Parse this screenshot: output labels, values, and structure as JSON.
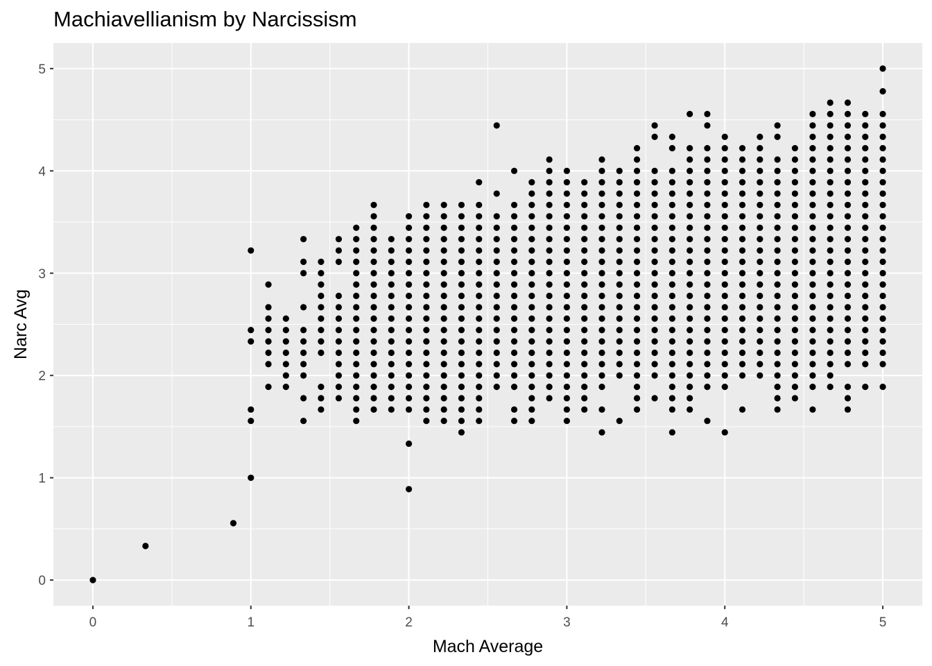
{
  "chart_data": {
    "type": "scatter",
    "title": "Machiavellianism by Narcissism",
    "xlabel": "Mach Average",
    "ylabel": "Narc Avg",
    "xlim": [
      -0.25,
      5.25
    ],
    "ylim": [
      -0.25,
      5.25
    ],
    "x_ticks": [
      0,
      1,
      2,
      3,
      4,
      5
    ],
    "y_ticks": [
      0,
      1,
      2,
      3,
      4,
      5
    ],
    "x_tick_labels": [
      "0",
      "1",
      "2",
      "3",
      "4",
      "5"
    ],
    "y_tick_labels": [
      "0",
      "1",
      "2",
      "3",
      "4",
      "5"
    ],
    "grid": true,
    "panel_background": "#ebebeb",
    "grid_color": "#ffffff",
    "point_color": "#000000",
    "value_step": 0.1111,
    "columns": [
      {
        "x": 0,
        "y": [
          0
        ]
      },
      {
        "x": 0.333,
        "y": [
          0.333
        ]
      },
      {
        "x": 0.889,
        "y": [
          0.556
        ]
      },
      {
        "x": 1.0,
        "y": [
          1.0,
          1.556,
          1.667,
          2.333,
          2.444,
          3.222
        ]
      },
      {
        "x": 1.111,
        "y": [
          1.889,
          2.111,
          2.222,
          2.333,
          2.444,
          2.556,
          2.667,
          2.889
        ]
      },
      {
        "x": 1.222,
        "y": [
          1.889,
          2.0,
          2.111,
          2.222,
          2.333,
          2.444,
          2.556
        ]
      },
      {
        "x": 1.333,
        "y": [
          1.556,
          1.778,
          2.0,
          2.111,
          2.222,
          2.333,
          2.444,
          2.667,
          3.0,
          3.111,
          3.333
        ]
      },
      {
        "x": 1.444,
        "y": [
          1.667,
          1.778,
          1.889,
          2.222,
          2.333,
          2.444,
          2.556,
          2.667,
          2.778,
          2.889,
          3.0,
          3.111
        ]
      },
      {
        "x": 1.556,
        "y": [
          1.778,
          1.889,
          2.0,
          2.111,
          2.222,
          2.333,
          2.444,
          2.556,
          2.667,
          2.778,
          3.111,
          3.222,
          3.333
        ]
      },
      {
        "x": 1.667,
        "y": [
          1.556,
          1.667,
          1.778,
          1.889,
          2.0,
          2.111,
          2.222,
          2.333,
          2.444,
          2.556,
          2.667,
          2.778,
          2.889,
          3.0,
          3.111,
          3.222,
          3.333,
          3.444
        ]
      },
      {
        "x": 1.778,
        "y": [
          1.667,
          1.778,
          1.889,
          2.0,
          2.111,
          2.222,
          2.333,
          2.444,
          2.556,
          2.667,
          2.778,
          2.889,
          3.0,
          3.111,
          3.222,
          3.333,
          3.444,
          3.556,
          3.667
        ]
      },
      {
        "x": 1.889,
        "y": [
          1.667,
          1.778,
          1.889,
          2.0,
          2.111,
          2.222,
          2.333,
          2.444,
          2.556,
          2.667,
          2.778,
          2.889,
          3.0,
          3.111,
          3.222,
          3.333
        ]
      },
      {
        "x": 2.0,
        "y": [
          0.889,
          1.333,
          1.667,
          1.778,
          1.889,
          2.0,
          2.111,
          2.222,
          2.333,
          2.444,
          2.556,
          2.667,
          2.778,
          2.889,
          3.0,
          3.111,
          3.222,
          3.333,
          3.444,
          3.556
        ]
      },
      {
        "x": 2.111,
        "y": [
          1.556,
          1.667,
          1.778,
          1.889,
          2.0,
          2.111,
          2.222,
          2.333,
          2.444,
          2.556,
          2.667,
          2.778,
          2.889,
          3.0,
          3.111,
          3.222,
          3.333,
          3.444,
          3.556,
          3.667
        ]
      },
      {
        "x": 2.222,
        "y": [
          1.556,
          1.667,
          1.778,
          1.889,
          2.0,
          2.111,
          2.222,
          2.333,
          2.444,
          2.556,
          2.667,
          2.778,
          2.889,
          3.0,
          3.111,
          3.222,
          3.333,
          3.444,
          3.556,
          3.667
        ]
      },
      {
        "x": 2.333,
        "y": [
          1.444,
          1.556,
          1.667,
          1.778,
          1.889,
          2.0,
          2.111,
          2.222,
          2.333,
          2.444,
          2.556,
          2.667,
          2.778,
          2.889,
          3.0,
          3.111,
          3.222,
          3.333,
          3.444,
          3.556,
          3.667
        ]
      },
      {
        "x": 2.444,
        "y": [
          1.556,
          1.667,
          1.778,
          1.889,
          2.0,
          2.111,
          2.222,
          2.333,
          2.444,
          2.556,
          2.667,
          2.778,
          2.889,
          3.0,
          3.111,
          3.222,
          3.333,
          3.444,
          3.556,
          3.667,
          3.889
        ]
      },
      {
        "x": 2.556,
        "y": [
          1.889,
          2.0,
          2.111,
          2.222,
          2.333,
          2.444,
          2.556,
          2.667,
          2.778,
          2.889,
          3.0,
          3.111,
          3.222,
          3.333,
          3.444,
          3.556,
          3.778,
          4.444
        ]
      },
      {
        "x": 2.667,
        "y": [
          1.556,
          1.667,
          1.889,
          2.0,
          2.111,
          2.222,
          2.333,
          2.444,
          2.556,
          2.667,
          2.778,
          2.889,
          3.0,
          3.111,
          3.222,
          3.333,
          3.444,
          3.556,
          3.667,
          4.0
        ]
      },
      {
        "x": 2.778,
        "y": [
          1.556,
          1.667,
          1.778,
          1.889,
          2.0,
          2.111,
          2.222,
          2.333,
          2.444,
          2.556,
          2.667,
          2.778,
          2.889,
          3.0,
          3.111,
          3.222,
          3.333,
          3.444,
          3.556,
          3.667,
          3.778,
          3.889
        ]
      },
      {
        "x": 2.889,
        "y": [
          1.778,
          1.889,
          2.0,
          2.111,
          2.222,
          2.333,
          2.444,
          2.556,
          2.667,
          2.778,
          2.889,
          3.0,
          3.111,
          3.222,
          3.333,
          3.444,
          3.556,
          3.667,
          3.778,
          3.889,
          4.0,
          4.111
        ]
      },
      {
        "x": 3.0,
        "y": [
          1.556,
          1.667,
          1.778,
          1.889,
          2.0,
          2.111,
          2.222,
          2.333,
          2.444,
          2.556,
          2.667,
          2.778,
          2.889,
          3.0,
          3.111,
          3.222,
          3.333,
          3.444,
          3.556,
          3.667,
          3.778,
          3.889,
          4.0
        ]
      },
      {
        "x": 3.111,
        "y": [
          1.667,
          1.778,
          1.889,
          2.0,
          2.111,
          2.222,
          2.333,
          2.444,
          2.556,
          2.667,
          2.778,
          2.889,
          3.0,
          3.111,
          3.222,
          3.333,
          3.444,
          3.556,
          3.667,
          3.778,
          3.889
        ]
      },
      {
        "x": 3.222,
        "y": [
          1.444,
          1.667,
          1.889,
          2.0,
          2.111,
          2.222,
          2.333,
          2.444,
          2.556,
          2.667,
          2.778,
          2.889,
          3.0,
          3.111,
          3.222,
          3.333,
          3.444,
          3.556,
          3.667,
          3.778,
          3.889,
          4.0,
          4.111
        ]
      },
      {
        "x": 3.333,
        "y": [
          1.556,
          2.0,
          2.111,
          2.222,
          2.333,
          2.444,
          2.556,
          2.667,
          2.778,
          2.889,
          3.0,
          3.111,
          3.222,
          3.333,
          3.444,
          3.556,
          3.667,
          3.778,
          3.889,
          4.0
        ]
      },
      {
        "x": 3.444,
        "y": [
          1.667,
          1.778,
          1.889,
          2.0,
          2.111,
          2.222,
          2.333,
          2.444,
          2.556,
          2.667,
          2.778,
          2.889,
          3.0,
          3.111,
          3.222,
          3.333,
          3.444,
          3.556,
          3.667,
          3.778,
          3.889,
          4.0,
          4.111,
          4.222
        ]
      },
      {
        "x": 3.556,
        "y": [
          1.778,
          2.0,
          2.111,
          2.222,
          2.333,
          2.444,
          2.556,
          2.667,
          2.778,
          2.889,
          3.0,
          3.111,
          3.222,
          3.333,
          3.444,
          3.556,
          3.667,
          3.778,
          3.889,
          4.0,
          4.333,
          4.444
        ]
      },
      {
        "x": 3.667,
        "y": [
          1.444,
          1.667,
          1.778,
          1.889,
          2.0,
          2.111,
          2.222,
          2.333,
          2.444,
          2.556,
          2.667,
          2.778,
          2.889,
          3.0,
          3.111,
          3.222,
          3.333,
          3.444,
          3.556,
          3.667,
          3.778,
          3.889,
          4.0,
          4.222,
          4.333
        ]
      },
      {
        "x": 3.778,
        "y": [
          1.667,
          1.778,
          1.889,
          2.0,
          2.111,
          2.222,
          2.333,
          2.444,
          2.556,
          2.667,
          2.778,
          2.889,
          3.0,
          3.111,
          3.222,
          3.333,
          3.444,
          3.556,
          3.667,
          3.778,
          3.889,
          4.0,
          4.111,
          4.222,
          4.556
        ]
      },
      {
        "x": 3.889,
        "y": [
          1.556,
          1.889,
          2.0,
          2.111,
          2.222,
          2.333,
          2.444,
          2.556,
          2.667,
          2.778,
          2.889,
          3.0,
          3.111,
          3.222,
          3.333,
          3.444,
          3.556,
          3.667,
          3.778,
          3.889,
          4.0,
          4.111,
          4.222,
          4.444,
          4.556
        ]
      },
      {
        "x": 4.0,
        "y": [
          1.444,
          1.889,
          2.0,
          2.111,
          2.222,
          2.333,
          2.444,
          2.556,
          2.667,
          2.778,
          2.889,
          3.0,
          3.111,
          3.222,
          3.333,
          3.444,
          3.556,
          3.667,
          3.778,
          3.889,
          4.0,
          4.111,
          4.222,
          4.333
        ]
      },
      {
        "x": 4.111,
        "y": [
          1.667,
          2.0,
          2.111,
          2.222,
          2.333,
          2.444,
          2.556,
          2.667,
          2.778,
          2.889,
          3.0,
          3.111,
          3.222,
          3.333,
          3.444,
          3.556,
          3.667,
          3.778,
          3.889,
          4.0,
          4.111,
          4.222
        ]
      },
      {
        "x": 4.222,
        "y": [
          2.0,
          2.111,
          2.222,
          2.333,
          2.444,
          2.556,
          2.667,
          2.778,
          2.889,
          3.0,
          3.111,
          3.222,
          3.333,
          3.444,
          3.556,
          3.667,
          3.778,
          3.889,
          4.0,
          4.111,
          4.222,
          4.333
        ]
      },
      {
        "x": 4.333,
        "y": [
          1.667,
          1.778,
          1.889,
          2.0,
          2.111,
          2.222,
          2.333,
          2.444,
          2.556,
          2.667,
          2.778,
          2.889,
          3.0,
          3.111,
          3.222,
          3.333,
          3.444,
          3.556,
          3.667,
          3.778,
          3.889,
          4.0,
          4.111,
          4.333,
          4.444
        ]
      },
      {
        "x": 4.444,
        "y": [
          1.778,
          1.889,
          2.0,
          2.111,
          2.222,
          2.333,
          2.444,
          2.556,
          2.667,
          2.778,
          2.889,
          3.0,
          3.111,
          3.222,
          3.333,
          3.444,
          3.556,
          3.667,
          3.778,
          3.889,
          4.0,
          4.111,
          4.222
        ]
      },
      {
        "x": 4.556,
        "y": [
          1.667,
          1.889,
          2.0,
          2.111,
          2.222,
          2.333,
          2.444,
          2.556,
          2.667,
          2.778,
          2.889,
          3.0,
          3.111,
          3.222,
          3.333,
          3.444,
          3.556,
          3.667,
          3.778,
          3.889,
          4.0,
          4.111,
          4.222,
          4.333,
          4.444,
          4.556
        ]
      },
      {
        "x": 4.667,
        "y": [
          1.889,
          2.0,
          2.111,
          2.222,
          2.333,
          2.444,
          2.556,
          2.667,
          2.778,
          2.889,
          3.0,
          3.111,
          3.222,
          3.333,
          3.444,
          3.556,
          3.667,
          3.778,
          3.889,
          4.0,
          4.111,
          4.222,
          4.333,
          4.444,
          4.556,
          4.667
        ]
      },
      {
        "x": 4.778,
        "y": [
          1.667,
          1.778,
          1.889,
          2.111,
          2.222,
          2.333,
          2.444,
          2.556,
          2.667,
          2.778,
          2.889,
          3.0,
          3.111,
          3.222,
          3.333,
          3.444,
          3.556,
          3.667,
          3.778,
          3.889,
          4.0,
          4.111,
          4.222,
          4.333,
          4.444,
          4.556,
          4.667
        ]
      },
      {
        "x": 4.889,
        "y": [
          1.889,
          2.111,
          2.222,
          2.333,
          2.444,
          2.556,
          2.667,
          2.778,
          2.889,
          3.0,
          3.111,
          3.222,
          3.333,
          3.444,
          3.556,
          3.667,
          3.778,
          3.889,
          4.0,
          4.111,
          4.222,
          4.333,
          4.444,
          4.556
        ]
      },
      {
        "x": 5.0,
        "y": [
          1.889,
          2.111,
          2.222,
          2.333,
          2.444,
          2.556,
          2.667,
          2.778,
          2.889,
          3.0,
          3.111,
          3.222,
          3.333,
          3.444,
          3.556,
          3.667,
          3.778,
          3.889,
          4.0,
          4.111,
          4.222,
          4.333,
          4.444,
          4.556,
          4.778,
          5.0
        ]
      }
    ]
  }
}
